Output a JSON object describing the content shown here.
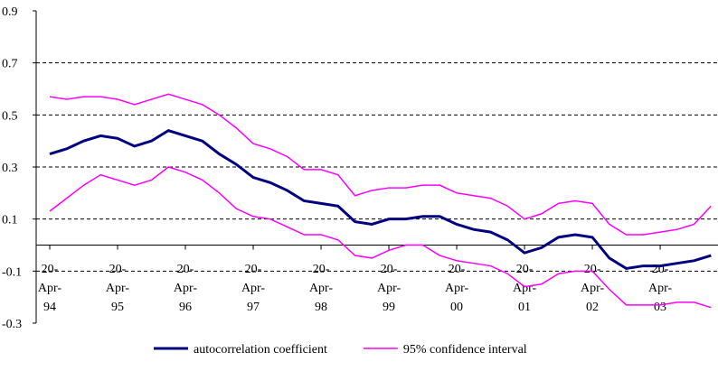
{
  "chart_data": {
    "type": "line",
    "x": [
      0,
      1,
      2,
      3,
      4,
      5,
      6,
      7,
      8,
      9,
      10,
      11,
      12,
      13,
      14,
      15,
      16,
      17,
      18,
      19,
      20,
      21,
      22,
      23,
      24,
      25,
      26,
      27,
      28,
      29,
      30,
      31,
      32,
      33,
      34,
      35,
      36,
      37,
      38,
      39
    ],
    "xlim": [
      -0.8,
      39.41
    ],
    "xticks": [
      {
        "value": 0,
        "label": "20-Apr-94"
      },
      {
        "value": 4,
        "label": "20-Apr-95"
      },
      {
        "value": 8,
        "label": "20-Apr-96"
      },
      {
        "value": 12,
        "label": "20-Apr-97"
      },
      {
        "value": 16,
        "label": "20-Apr-98"
      },
      {
        "value": 20,
        "label": "20-Apr-99"
      },
      {
        "value": 24,
        "label": "20-Apr-00"
      },
      {
        "value": 28,
        "label": "20-Apr-01"
      },
      {
        "value": 32,
        "label": "20-Apr-02"
      },
      {
        "value": 36,
        "label": "20-Apr-03"
      }
    ],
    "ylim": [
      -0.3,
      0.9
    ],
    "yticks": [
      -0.3,
      -0.1,
      0.1,
      0.3,
      0.5,
      0.7,
      0.9
    ],
    "grid": true,
    "legend": "bottom",
    "series": [
      {
        "name": "autocorrelation coefficient",
        "color": "#000080",
        "values": [
          0.35,
          0.37,
          0.4,
          0.42,
          0.41,
          0.38,
          0.4,
          0.44,
          0.42,
          0.4,
          0.35,
          0.31,
          0.26,
          0.24,
          0.21,
          0.17,
          0.16,
          0.15,
          0.09,
          0.08,
          0.1,
          0.1,
          0.11,
          0.11,
          0.08,
          0.06,
          0.05,
          0.02,
          -0.03,
          -0.01,
          0.03,
          0.04,
          0.03,
          -0.05,
          -0.09,
          -0.08,
          -0.08,
          -0.07,
          -0.06,
          -0.04
        ]
      },
      {
        "name": "95% confidence interval",
        "color": "#ff00ff",
        "values": [
          0.57,
          0.56,
          0.57,
          0.57,
          0.56,
          0.54,
          0.56,
          0.58,
          0.56,
          0.54,
          0.5,
          0.45,
          0.39,
          0.37,
          0.34,
          0.29,
          0.29,
          0.27,
          0.19,
          0.21,
          0.22,
          0.22,
          0.23,
          0.23,
          0.2,
          0.19,
          0.18,
          0.15,
          0.1,
          0.12,
          0.16,
          0.17,
          0.16,
          0.08,
          0.04,
          0.04,
          0.05,
          0.06,
          0.08,
          0.15
        ]
      },
      {
        "name": "95% confidence interval",
        "color": "#ff00ff",
        "values": [
          0.13,
          0.18,
          0.23,
          0.27,
          0.25,
          0.23,
          0.25,
          0.3,
          0.28,
          0.25,
          0.2,
          0.14,
          0.11,
          0.1,
          0.07,
          0.04,
          0.04,
          0.02,
          -0.04,
          -0.05,
          -0.02,
          0.0,
          0.0,
          -0.04,
          -0.06,
          -0.07,
          -0.08,
          -0.11,
          -0.16,
          -0.15,
          -0.11,
          -0.1,
          -0.1,
          -0.17,
          -0.23,
          -0.23,
          -0.23,
          -0.22,
          -0.22,
          -0.24
        ]
      }
    ]
  }
}
